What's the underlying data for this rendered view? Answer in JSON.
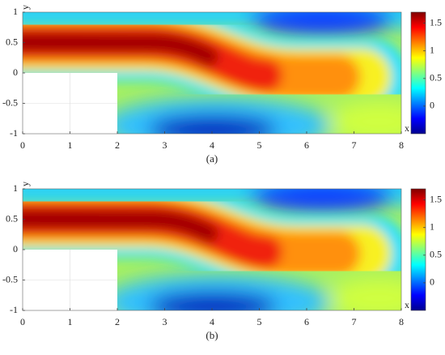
{
  "chart_data": [
    {
      "type": "heatmap",
      "caption": "(a)",
      "xlabel": "x",
      "ylabel": "y",
      "colormap": "jet",
      "xlim": [
        0,
        8
      ],
      "ylim": [
        -1,
        1
      ],
      "xticks": [
        0,
        1,
        2,
        3,
        4,
        5,
        6,
        7,
        8
      ],
      "yticks": [
        -1,
        -0.5,
        0,
        0.5,
        1
      ],
      "clim": [
        -0.5,
        1.7
      ],
      "cticks": [
        0,
        0.5,
        1,
        1.5
      ]
    },
    {
      "type": "heatmap",
      "caption": "(b)",
      "xlabel": "x",
      "ylabel": "y",
      "colormap": "jet",
      "xlim": [
        0,
        8
      ],
      "ylim": [
        -1,
        1
      ],
      "xticks": [
        0,
        1,
        2,
        3,
        4,
        5,
        6,
        7,
        8
      ],
      "yticks": [
        -1,
        -0.5,
        0,
        0.5,
        1
      ],
      "clim": [
        -0.5,
        1.7
      ],
      "cticks": [
        0,
        0.5,
        1,
        1.5
      ]
    }
  ]
}
